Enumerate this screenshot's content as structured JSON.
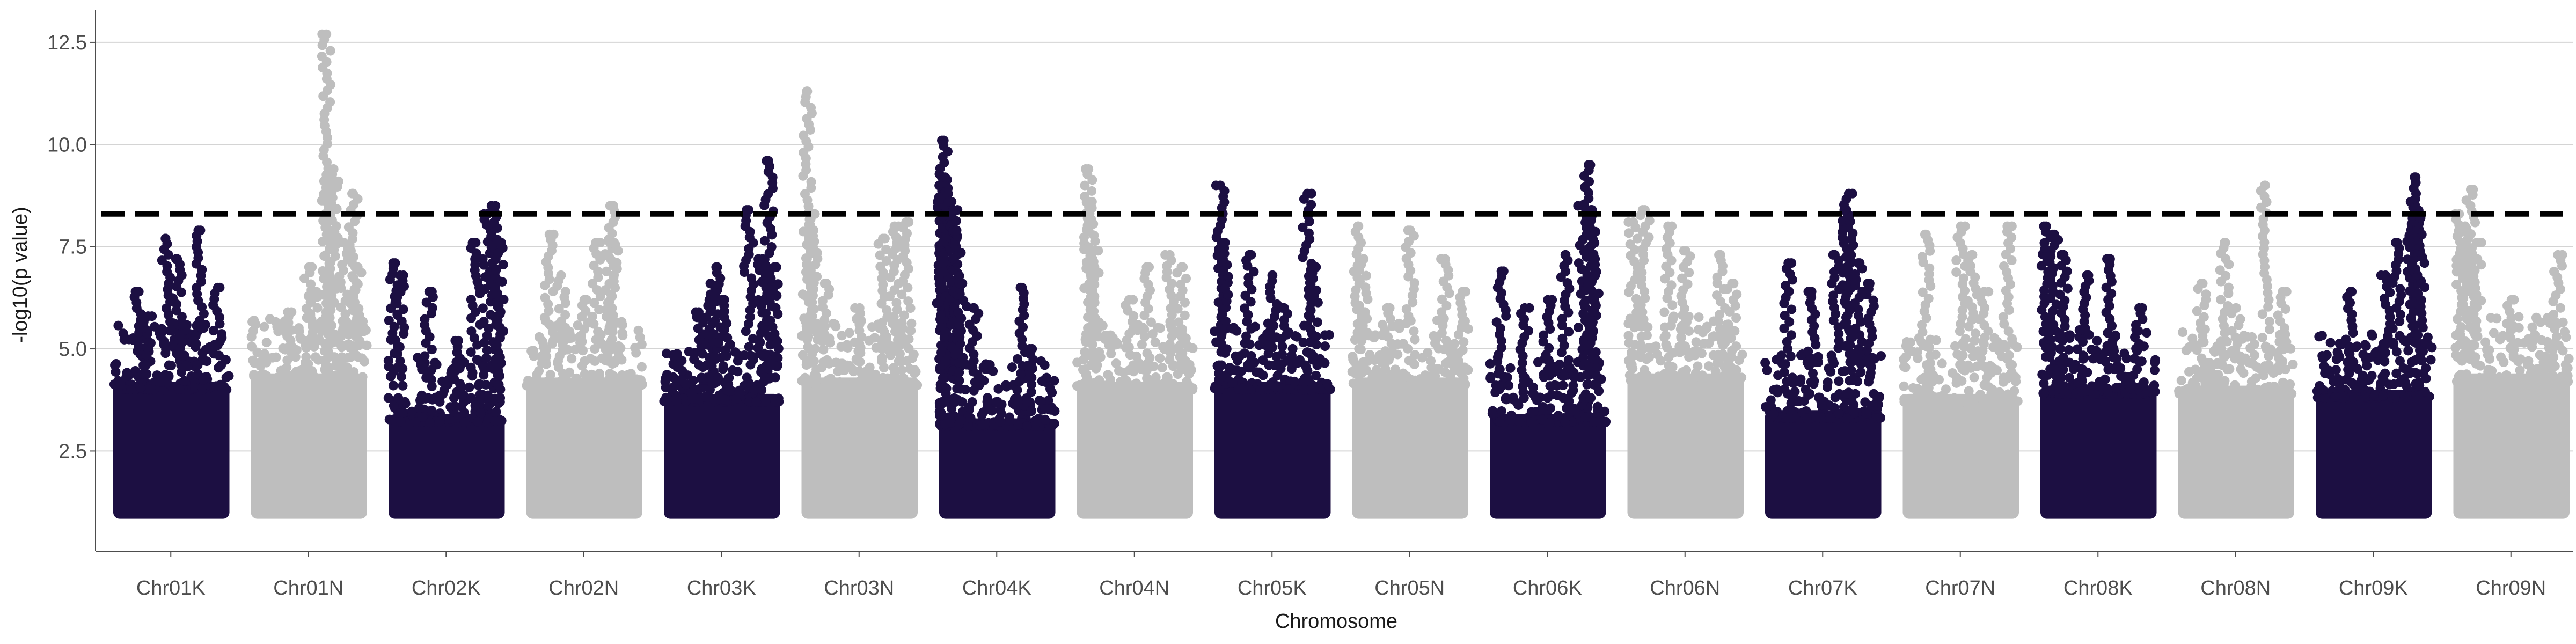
{
  "chart_data": {
    "type": "scatter",
    "subtype": "manhattan",
    "title": "",
    "xlabel": "Chromosome",
    "ylabel": "-log10(p value)",
    "ylim": [
      0.05,
      13.3
    ],
    "yticks": [
      2.5,
      5.0,
      7.5,
      10.0,
      12.5
    ],
    "ytick_labels": [
      "2.5",
      "5.0",
      "7.5",
      "10.0",
      "12.5"
    ],
    "grid": "horizontal major lines",
    "legend": "none",
    "threshold": {
      "value": 8.3,
      "style": "dashed",
      "color": "#000000"
    },
    "colors": {
      "odd": "#1c0f42",
      "even": "#bebebe"
    },
    "point_floor": 1.0,
    "chromosomes": [
      {
        "name": "Chr01K",
        "color": "#1c0f42",
        "bulk_top": 4.6,
        "peaks": [
          [
            0.22,
            6.4
          ],
          [
            0.45,
            7.7
          ],
          [
            0.55,
            7.2
          ],
          [
            0.75,
            7.9
          ],
          [
            0.9,
            6.5
          ],
          [
            0.6,
            5.6
          ],
          [
            0.3,
            5.8
          ]
        ]
      },
      {
        "name": "Chr01N",
        "color": "#bebebe",
        "bulk_top": 4.8,
        "peaks": [
          [
            0.65,
            12.7
          ],
          [
            0.68,
            9.4
          ],
          [
            0.72,
            9.1
          ],
          [
            0.88,
            8.8
          ],
          [
            0.8,
            7.6
          ],
          [
            0.5,
            7.0
          ],
          [
            0.55,
            6.4
          ],
          [
            0.35,
            5.9
          ],
          [
            0.92,
            7.0
          ]
        ]
      },
      {
        "name": "Chr02K",
        "color": "#1c0f42",
        "bulk_top": 3.8,
        "peaks": [
          [
            0.04,
            7.1
          ],
          [
            0.1,
            6.8
          ],
          [
            0.35,
            6.4
          ],
          [
            0.75,
            7.6
          ],
          [
            0.85,
            8.3
          ],
          [
            0.92,
            8.5
          ],
          [
            0.95,
            7.6
          ],
          [
            0.6,
            5.2
          ]
        ]
      },
      {
        "name": "Chr02N",
        "color": "#bebebe",
        "bulk_top": 4.7,
        "peaks": [
          [
            0.2,
            7.8
          ],
          [
            0.3,
            6.8
          ],
          [
            0.6,
            7.6
          ],
          [
            0.72,
            7.6
          ],
          [
            0.75,
            8.5
          ],
          [
            0.5,
            6.2
          ]
        ]
      },
      {
        "name": "Chr03K",
        "color": "#1c0f42",
        "bulk_top": 4.3,
        "peaks": [
          [
            0.4,
            6.6
          ],
          [
            0.45,
            7.0
          ],
          [
            0.5,
            6.2
          ],
          [
            0.73,
            8.4
          ],
          [
            0.85,
            7.2
          ],
          [
            0.9,
            9.6
          ],
          [
            0.95,
            7.0
          ],
          [
            0.3,
            5.9
          ]
        ]
      },
      {
        "name": "Chr03N",
        "color": "#bebebe",
        "bulk_top": 4.7,
        "peaks": [
          [
            0.05,
            11.3
          ],
          [
            0.07,
            7.9
          ],
          [
            0.1,
            8.3
          ],
          [
            0.2,
            6.6
          ],
          [
            0.7,
            7.7
          ],
          [
            0.8,
            8.0
          ],
          [
            0.9,
            8.1
          ],
          [
            0.5,
            6.0
          ]
        ]
      },
      {
        "name": "Chr04K",
        "color": "#1c0f42",
        "bulk_top": 3.7,
        "peaks": [
          [
            0.02,
            9.0
          ],
          [
            0.04,
            10.1
          ],
          [
            0.05,
            9.2
          ],
          [
            0.08,
            8.6
          ],
          [
            0.12,
            8.4
          ],
          [
            0.15,
            7.9
          ],
          [
            0.2,
            6.6
          ],
          [
            0.3,
            6.0
          ],
          [
            0.7,
            6.5
          ],
          [
            0.8,
            5.0
          ]
        ]
      },
      {
        "name": "Chr04N",
        "color": "#bebebe",
        "bulk_top": 4.6,
        "peaks": [
          [
            0.1,
            9.4
          ],
          [
            0.12,
            8.6
          ],
          [
            0.15,
            7.4
          ],
          [
            0.6,
            7.0
          ],
          [
            0.8,
            7.3
          ],
          [
            0.9,
            7.0
          ],
          [
            0.45,
            6.2
          ]
        ]
      },
      {
        "name": "Chr05K",
        "color": "#1c0f42",
        "bulk_top": 4.6,
        "peaks": [
          [
            0.05,
            9.0
          ],
          [
            0.08,
            7.6
          ],
          [
            0.3,
            7.3
          ],
          [
            0.5,
            6.8
          ],
          [
            0.8,
            8.8
          ],
          [
            0.85,
            7.0
          ],
          [
            0.6,
            6.0
          ]
        ]
      },
      {
        "name": "Chr05N",
        "color": "#bebebe",
        "bulk_top": 4.7,
        "peaks": [
          [
            0.05,
            8.0
          ],
          [
            0.1,
            7.2
          ],
          [
            0.5,
            7.9
          ],
          [
            0.8,
            7.2
          ],
          [
            0.95,
            6.4
          ],
          [
            0.3,
            6.0
          ]
        ]
      },
      {
        "name": "Chr06K",
        "color": "#1c0f42",
        "bulk_top": 3.8,
        "peaks": [
          [
            0.1,
            6.9
          ],
          [
            0.3,
            6.0
          ],
          [
            0.5,
            6.2
          ],
          [
            0.65,
            7.3
          ],
          [
            0.8,
            8.5
          ],
          [
            0.85,
            9.5
          ],
          [
            0.88,
            8.4
          ],
          [
            0.9,
            7.2
          ]
        ]
      },
      {
        "name": "Chr06N",
        "color": "#bebebe",
        "bulk_top": 4.8,
        "peaks": [
          [
            0.05,
            8.1
          ],
          [
            0.15,
            8.4
          ],
          [
            0.35,
            8.0
          ],
          [
            0.5,
            7.4
          ],
          [
            0.8,
            7.3
          ],
          [
            0.9,
            6.6
          ]
        ]
      },
      {
        "name": "Chr07K",
        "color": "#1c0f42",
        "bulk_top": 3.9,
        "peaks": [
          [
            0.2,
            7.1
          ],
          [
            0.4,
            6.4
          ],
          [
            0.6,
            7.3
          ],
          [
            0.7,
            8.4
          ],
          [
            0.72,
            8.8
          ],
          [
            0.8,
            7.1
          ],
          [
            0.9,
            6.6
          ]
        ]
      },
      {
        "name": "Chr07N",
        "color": "#bebebe",
        "bulk_top": 4.3,
        "peaks": [
          [
            0.2,
            7.8
          ],
          [
            0.5,
            8.0
          ],
          [
            0.6,
            7.3
          ],
          [
            0.9,
            8.0
          ],
          [
            0.7,
            6.4
          ]
        ]
      },
      {
        "name": "Chr08K",
        "color": "#1c0f42",
        "bulk_top": 4.5,
        "peaks": [
          [
            0.05,
            8.0
          ],
          [
            0.12,
            7.8
          ],
          [
            0.2,
            7.3
          ],
          [
            0.4,
            6.8
          ],
          [
            0.6,
            7.2
          ],
          [
            0.85,
            6.0
          ]
        ]
      },
      {
        "name": "Chr08N",
        "color": "#bebebe",
        "bulk_top": 4.5,
        "peaks": [
          [
            0.2,
            6.6
          ],
          [
            0.4,
            7.6
          ],
          [
            0.75,
            9.0
          ],
          [
            0.9,
            6.4
          ],
          [
            0.5,
            6.0
          ]
        ]
      },
      {
        "name": "Chr09K",
        "color": "#1c0f42",
        "bulk_top": 4.4,
        "peaks": [
          [
            0.3,
            6.4
          ],
          [
            0.7,
            7.6
          ],
          [
            0.82,
            8.6
          ],
          [
            0.86,
            9.2
          ],
          [
            0.9,
            8.2
          ],
          [
            0.6,
            6.8
          ]
        ]
      },
      {
        "name": "Chr09N",
        "color": "#bebebe",
        "bulk_top": 4.8,
        "peaks": [
          [
            0.05,
            8.3
          ],
          [
            0.1,
            8.0
          ],
          [
            0.15,
            8.9
          ],
          [
            0.2,
            7.6
          ],
          [
            0.5,
            6.2
          ],
          [
            0.9,
            7.3
          ]
        ]
      }
    ]
  }
}
